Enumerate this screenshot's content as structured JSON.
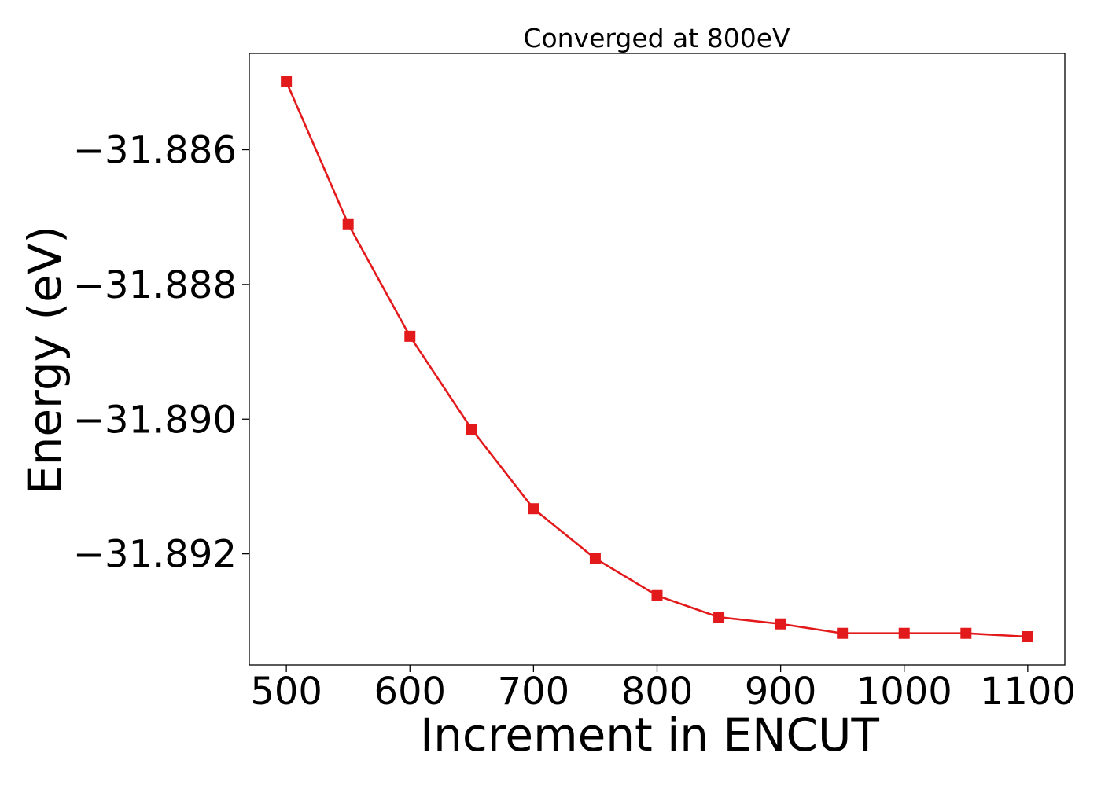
{
  "chart_data": {
    "type": "line",
    "title": "Converged at 800eV",
    "xlabel": "Increment in ENCUT",
    "ylabel": "Energy (eV)",
    "xlim": [
      470,
      1130
    ],
    "ylim": [
      -31.89365,
      -31.88457
    ],
    "x_ticks": [
      500,
      600,
      700,
      800,
      900,
      1000,
      1100
    ],
    "x_tick_labels": [
      "500",
      "600",
      "700",
      "800",
      "900",
      "1000",
      "1100"
    ],
    "y_ticks": [
      -31.886,
      -31.888,
      -31.89,
      -31.892
    ],
    "y_tick_labels": [
      "−31.886",
      "−31.888",
      "−31.890",
      "−31.892"
    ],
    "grid": false,
    "series": [
      {
        "color": "#e31a1c",
        "marker": "square",
        "x": [
          500,
          550,
          600,
          650,
          700,
          750,
          800,
          850,
          900,
          950,
          1000,
          1050,
          1100
        ],
        "y": [
          -31.88499,
          -31.8871,
          -31.88877,
          -31.89015,
          -31.89133,
          -31.89207,
          -31.89262,
          -31.89294,
          -31.89304,
          -31.89318,
          -31.89318,
          -31.89318,
          -31.89323
        ]
      }
    ]
  }
}
